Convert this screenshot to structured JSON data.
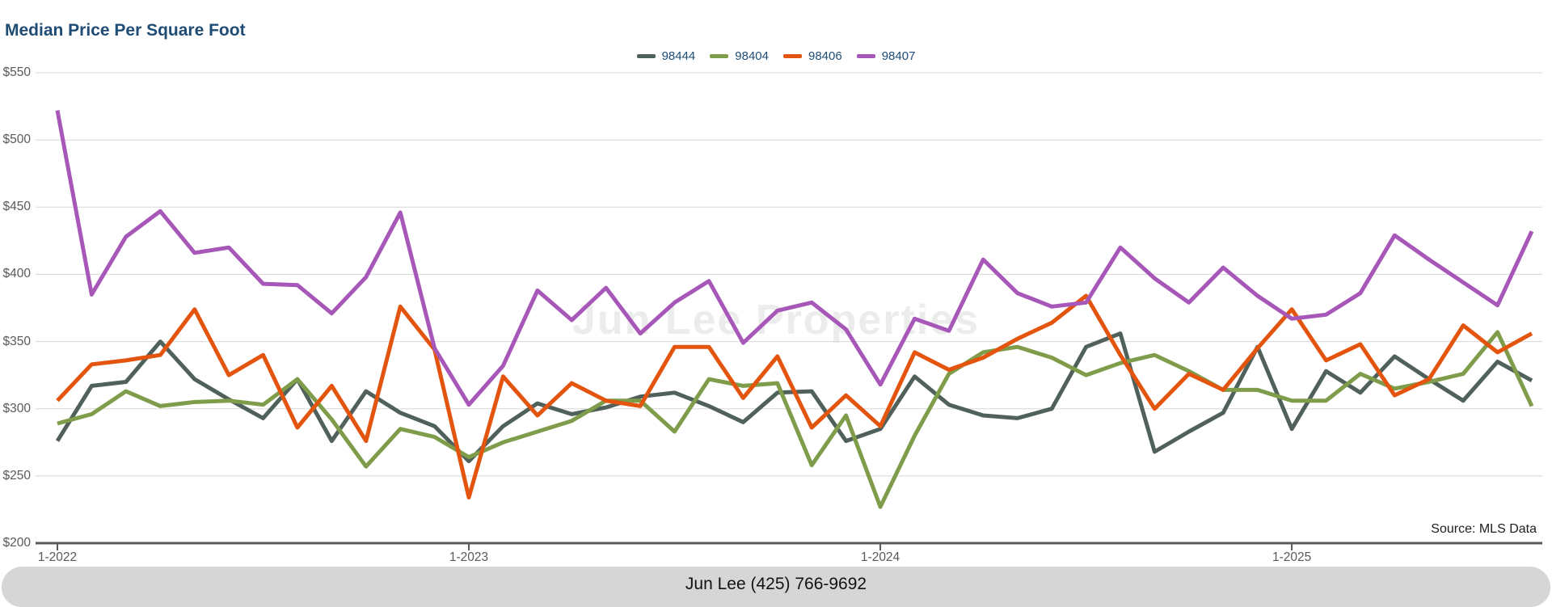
{
  "title": "Median Price Per Square Foot",
  "watermark": "Jun Lee Properties",
  "source_note": "Source: MLS Data",
  "footer": {
    "text": "Jun Lee (425) 766-9692"
  },
  "colors": {
    "title_text": "#1e4c74",
    "legend_text": "#1e4c74",
    "axis_text": "#595959",
    "axis_line": "#5a5a5a",
    "gridline": "#d8d8d8",
    "watermark_text": "#ececec",
    "banner_background": "#d6d6d6",
    "banner_text": "#121212",
    "series_98444": "#50605b",
    "series_98404": "#7e9c49",
    "series_98406": "#e3540e",
    "series_98407": "#a657b8"
  },
  "chart_data": {
    "type": "line",
    "title": "Median Price Per Square Foot",
    "xlabel": "",
    "ylabel": "",
    "ylim": [
      200,
      550
    ],
    "y_tick_step": 50,
    "grid": true,
    "legend_position": "top-center",
    "y_tick_labels": [
      "$550",
      "$500",
      "$450",
      "$400",
      "$350",
      "$300",
      "$250",
      "$200"
    ],
    "x_tick_labels": [
      "1-2022",
      "1-2023",
      "1-2024",
      "1-2025"
    ],
    "x": [
      "1-2022",
      "2-2022",
      "3-2022",
      "4-2022",
      "5-2022",
      "6-2022",
      "7-2022",
      "8-2022",
      "9-2022",
      "10-2022",
      "11-2022",
      "12-2022",
      "1-2023",
      "2-2023",
      "3-2023",
      "4-2023",
      "5-2023",
      "6-2023",
      "7-2023",
      "8-2023",
      "9-2023",
      "10-2023",
      "11-2023",
      "12-2023",
      "1-2024",
      "2-2024",
      "3-2024",
      "4-2024",
      "5-2024",
      "6-2024",
      "7-2024",
      "8-2024",
      "9-2024",
      "10-2024",
      "11-2024",
      "12-2024",
      "1-2025",
      "2-2025",
      "3-2025",
      "4-2025",
      "5-2025",
      "6-2025",
      "7-2025",
      "8-2025"
    ],
    "series": [
      {
        "name": "98444",
        "color": "#50605b",
        "values": [
          276,
          317,
          320,
          350,
          322,
          307,
          293,
          322,
          276,
          313,
          297,
          287,
          261,
          287,
          304,
          296,
          301,
          309,
          312,
          302,
          290,
          312,
          313,
          276,
          285,
          324,
          303,
          295,
          293,
          300,
          346,
          356,
          268,
          283,
          297,
          346,
          285,
          328,
          312,
          339,
          322,
          306,
          335,
          321
        ]
      },
      {
        "name": "98404",
        "color": "#7e9c49",
        "values": [
          289,
          296,
          313,
          302,
          305,
          306,
          303,
          322,
          292,
          257,
          285,
          279,
          264,
          275,
          283,
          291,
          306,
          306,
          283,
          322,
          317,
          319,
          258,
          295,
          227,
          280,
          326,
          342,
          346,
          338,
          325,
          334,
          340,
          328,
          314,
          314,
          306,
          306,
          326,
          315,
          320,
          326,
          357,
          302
        ]
      },
      {
        "name": "98406",
        "color": "#e3540e",
        "values": [
          306,
          333,
          336,
          340,
          374,
          325,
          340,
          286,
          317,
          276,
          376,
          344,
          234,
          324,
          295,
          319,
          306,
          302,
          346,
          346,
          308,
          339,
          286,
          310,
          287,
          342,
          329,
          338,
          352,
          364,
          384,
          340,
          300,
          326,
          314,
          345,
          374,
          336,
          348,
          310,
          322,
          362,
          342,
          356
        ]
      },
      {
        "name": "98407",
        "color": "#a657b8",
        "values": [
          522,
          385,
          428,
          447,
          416,
          420,
          393,
          392,
          371,
          398,
          446,
          345,
          303,
          332,
          388,
          366,
          390,
          356,
          379,
          395,
          349,
          373,
          379,
          359,
          318,
          367,
          358,
          411,
          386,
          376,
          379,
          420,
          397,
          379,
          405,
          384,
          367,
          370,
          386,
          429,
          411,
          394,
          377,
          432
        ]
      }
    ]
  }
}
